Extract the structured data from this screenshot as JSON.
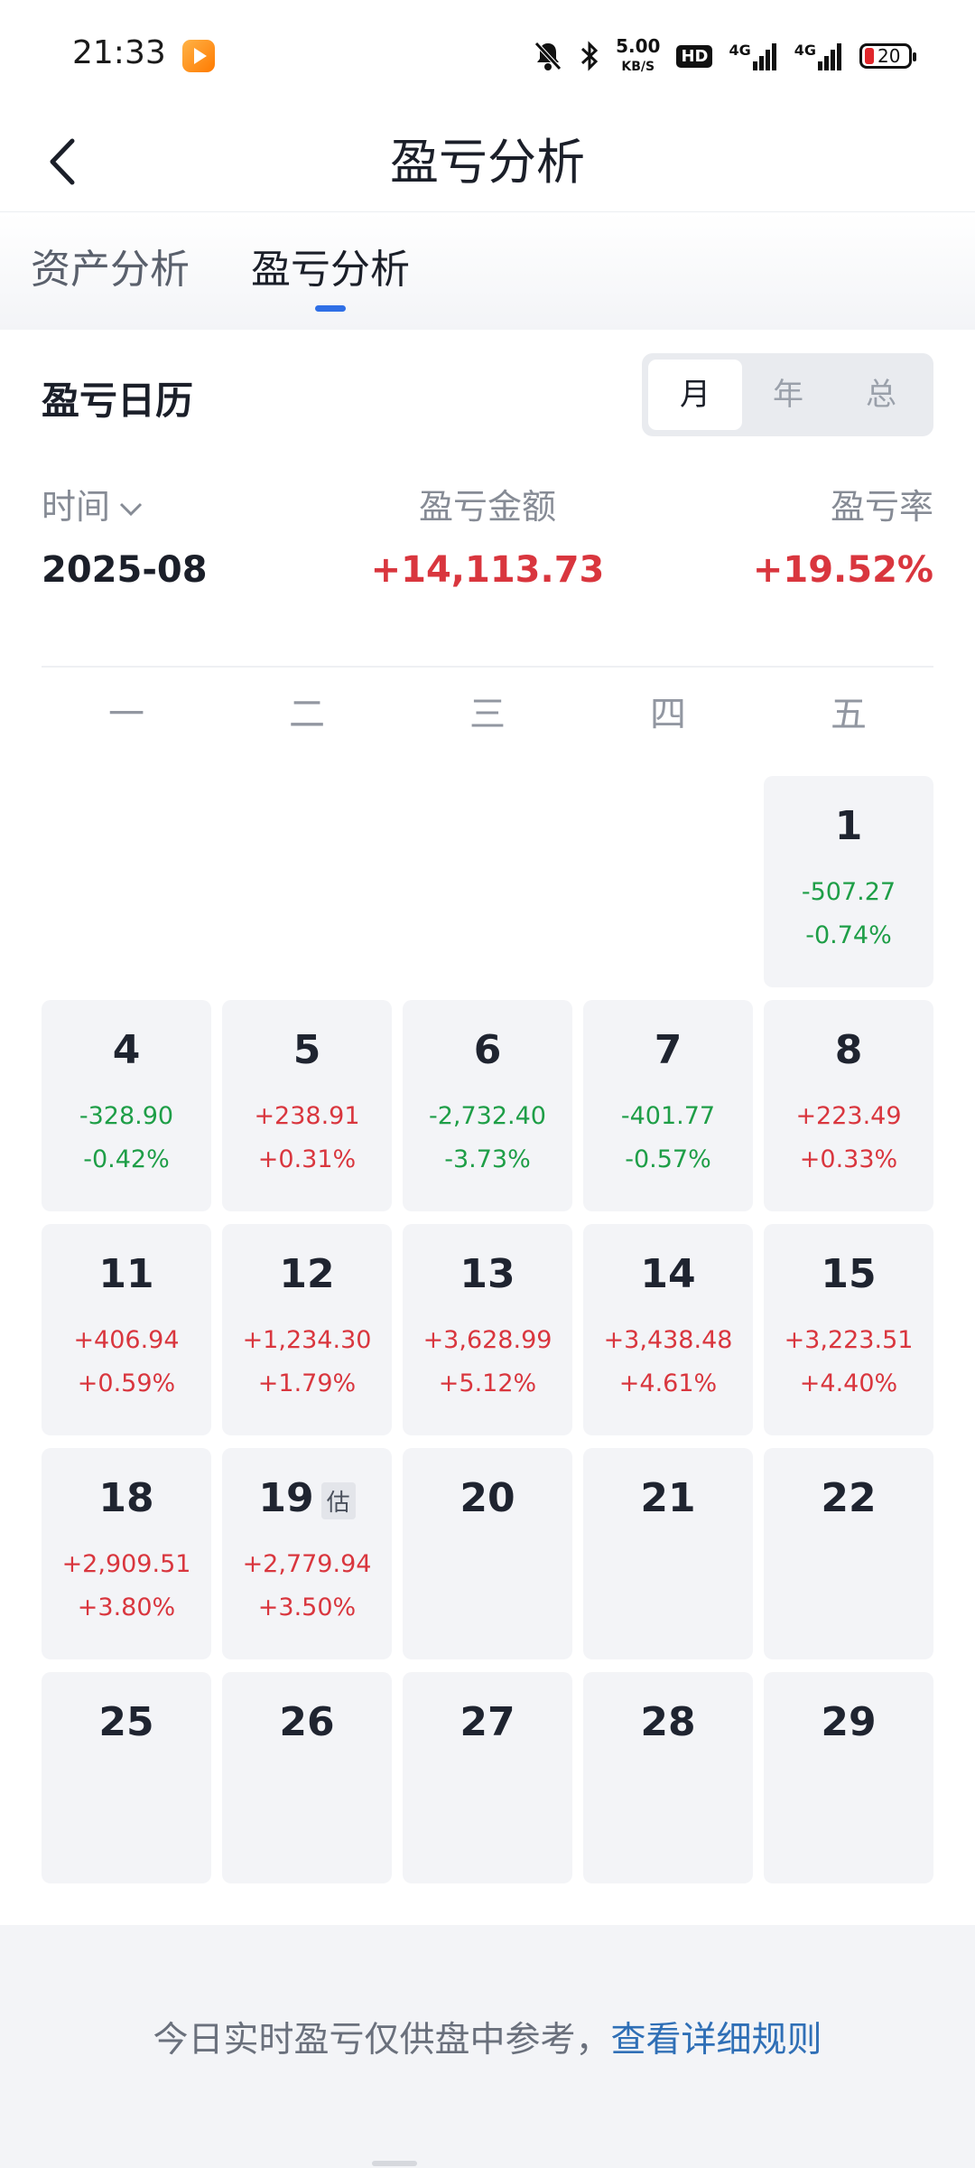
{
  "status_bar": {
    "time": "21:33",
    "speed_value": "5.00",
    "speed_unit": "KB/S",
    "hd_label": "HD",
    "network_1": "4G",
    "network_2": "4G",
    "battery_level": "20"
  },
  "header": {
    "title": "盈亏分析"
  },
  "tabs": [
    {
      "label": "资产分析",
      "active": false
    },
    {
      "label": "盈亏分析",
      "active": true
    }
  ],
  "calendar": {
    "section_title": "盈亏日历",
    "period_options": [
      "月",
      "年",
      "总"
    ],
    "selected_period": "月",
    "summary": {
      "time_label": "时间",
      "amount_label": "盈亏金额",
      "rate_label": "盈亏率",
      "month": "2025-08",
      "amount": "+14,113.73",
      "rate": "+19.52%"
    },
    "weekdays": [
      "一",
      "二",
      "三",
      "四",
      "五"
    ],
    "days": [
      {
        "day": "1",
        "amount": "-507.27",
        "pct": "-0.74%",
        "trend": "down"
      },
      {
        "day": "4",
        "amount": "-328.90",
        "pct": "-0.42%",
        "trend": "down"
      },
      {
        "day": "5",
        "amount": "+238.91",
        "pct": "+0.31%",
        "trend": "up"
      },
      {
        "day": "6",
        "amount": "-2,732.40",
        "pct": "-3.73%",
        "trend": "down"
      },
      {
        "day": "7",
        "amount": "-401.77",
        "pct": "-0.57%",
        "trend": "down"
      },
      {
        "day": "8",
        "amount": "+223.49",
        "pct": "+0.33%",
        "trend": "up"
      },
      {
        "day": "11",
        "amount": "+406.94",
        "pct": "+0.59%",
        "trend": "up"
      },
      {
        "day": "12",
        "amount": "+1,234.30",
        "pct": "+1.79%",
        "trend": "up"
      },
      {
        "day": "13",
        "amount": "+3,628.99",
        "pct": "+5.12%",
        "trend": "up"
      },
      {
        "day": "14",
        "amount": "+3,438.48",
        "pct": "+4.61%",
        "trend": "up"
      },
      {
        "day": "15",
        "amount": "+3,223.51",
        "pct": "+4.40%",
        "trend": "up"
      },
      {
        "day": "18",
        "amount": "+2,909.51",
        "pct": "+3.80%",
        "trend": "up"
      },
      {
        "day": "19",
        "amount": "+2,779.94",
        "pct": "+3.50%",
        "trend": "up",
        "badge": "估"
      },
      {
        "day": "20",
        "amount": "",
        "pct": "",
        "trend": ""
      },
      {
        "day": "21",
        "amount": "",
        "pct": "",
        "trend": ""
      },
      {
        "day": "22",
        "amount": "",
        "pct": "",
        "trend": ""
      },
      {
        "day": "25",
        "amount": "",
        "pct": "",
        "trend": ""
      },
      {
        "day": "26",
        "amount": "",
        "pct": "",
        "trend": ""
      },
      {
        "day": "27",
        "amount": "",
        "pct": "",
        "trend": ""
      },
      {
        "day": "28",
        "amount": "",
        "pct": "",
        "trend": ""
      },
      {
        "day": "29",
        "amount": "",
        "pct": "",
        "trend": ""
      }
    ]
  },
  "footer": {
    "note": "今日实时盈亏仅供盘中参考，",
    "link": "查看详细规则"
  },
  "colors": {
    "up": "#d9363e",
    "down": "#1e9e47",
    "accent": "#2f6fe6",
    "link": "#2f6fb6"
  }
}
